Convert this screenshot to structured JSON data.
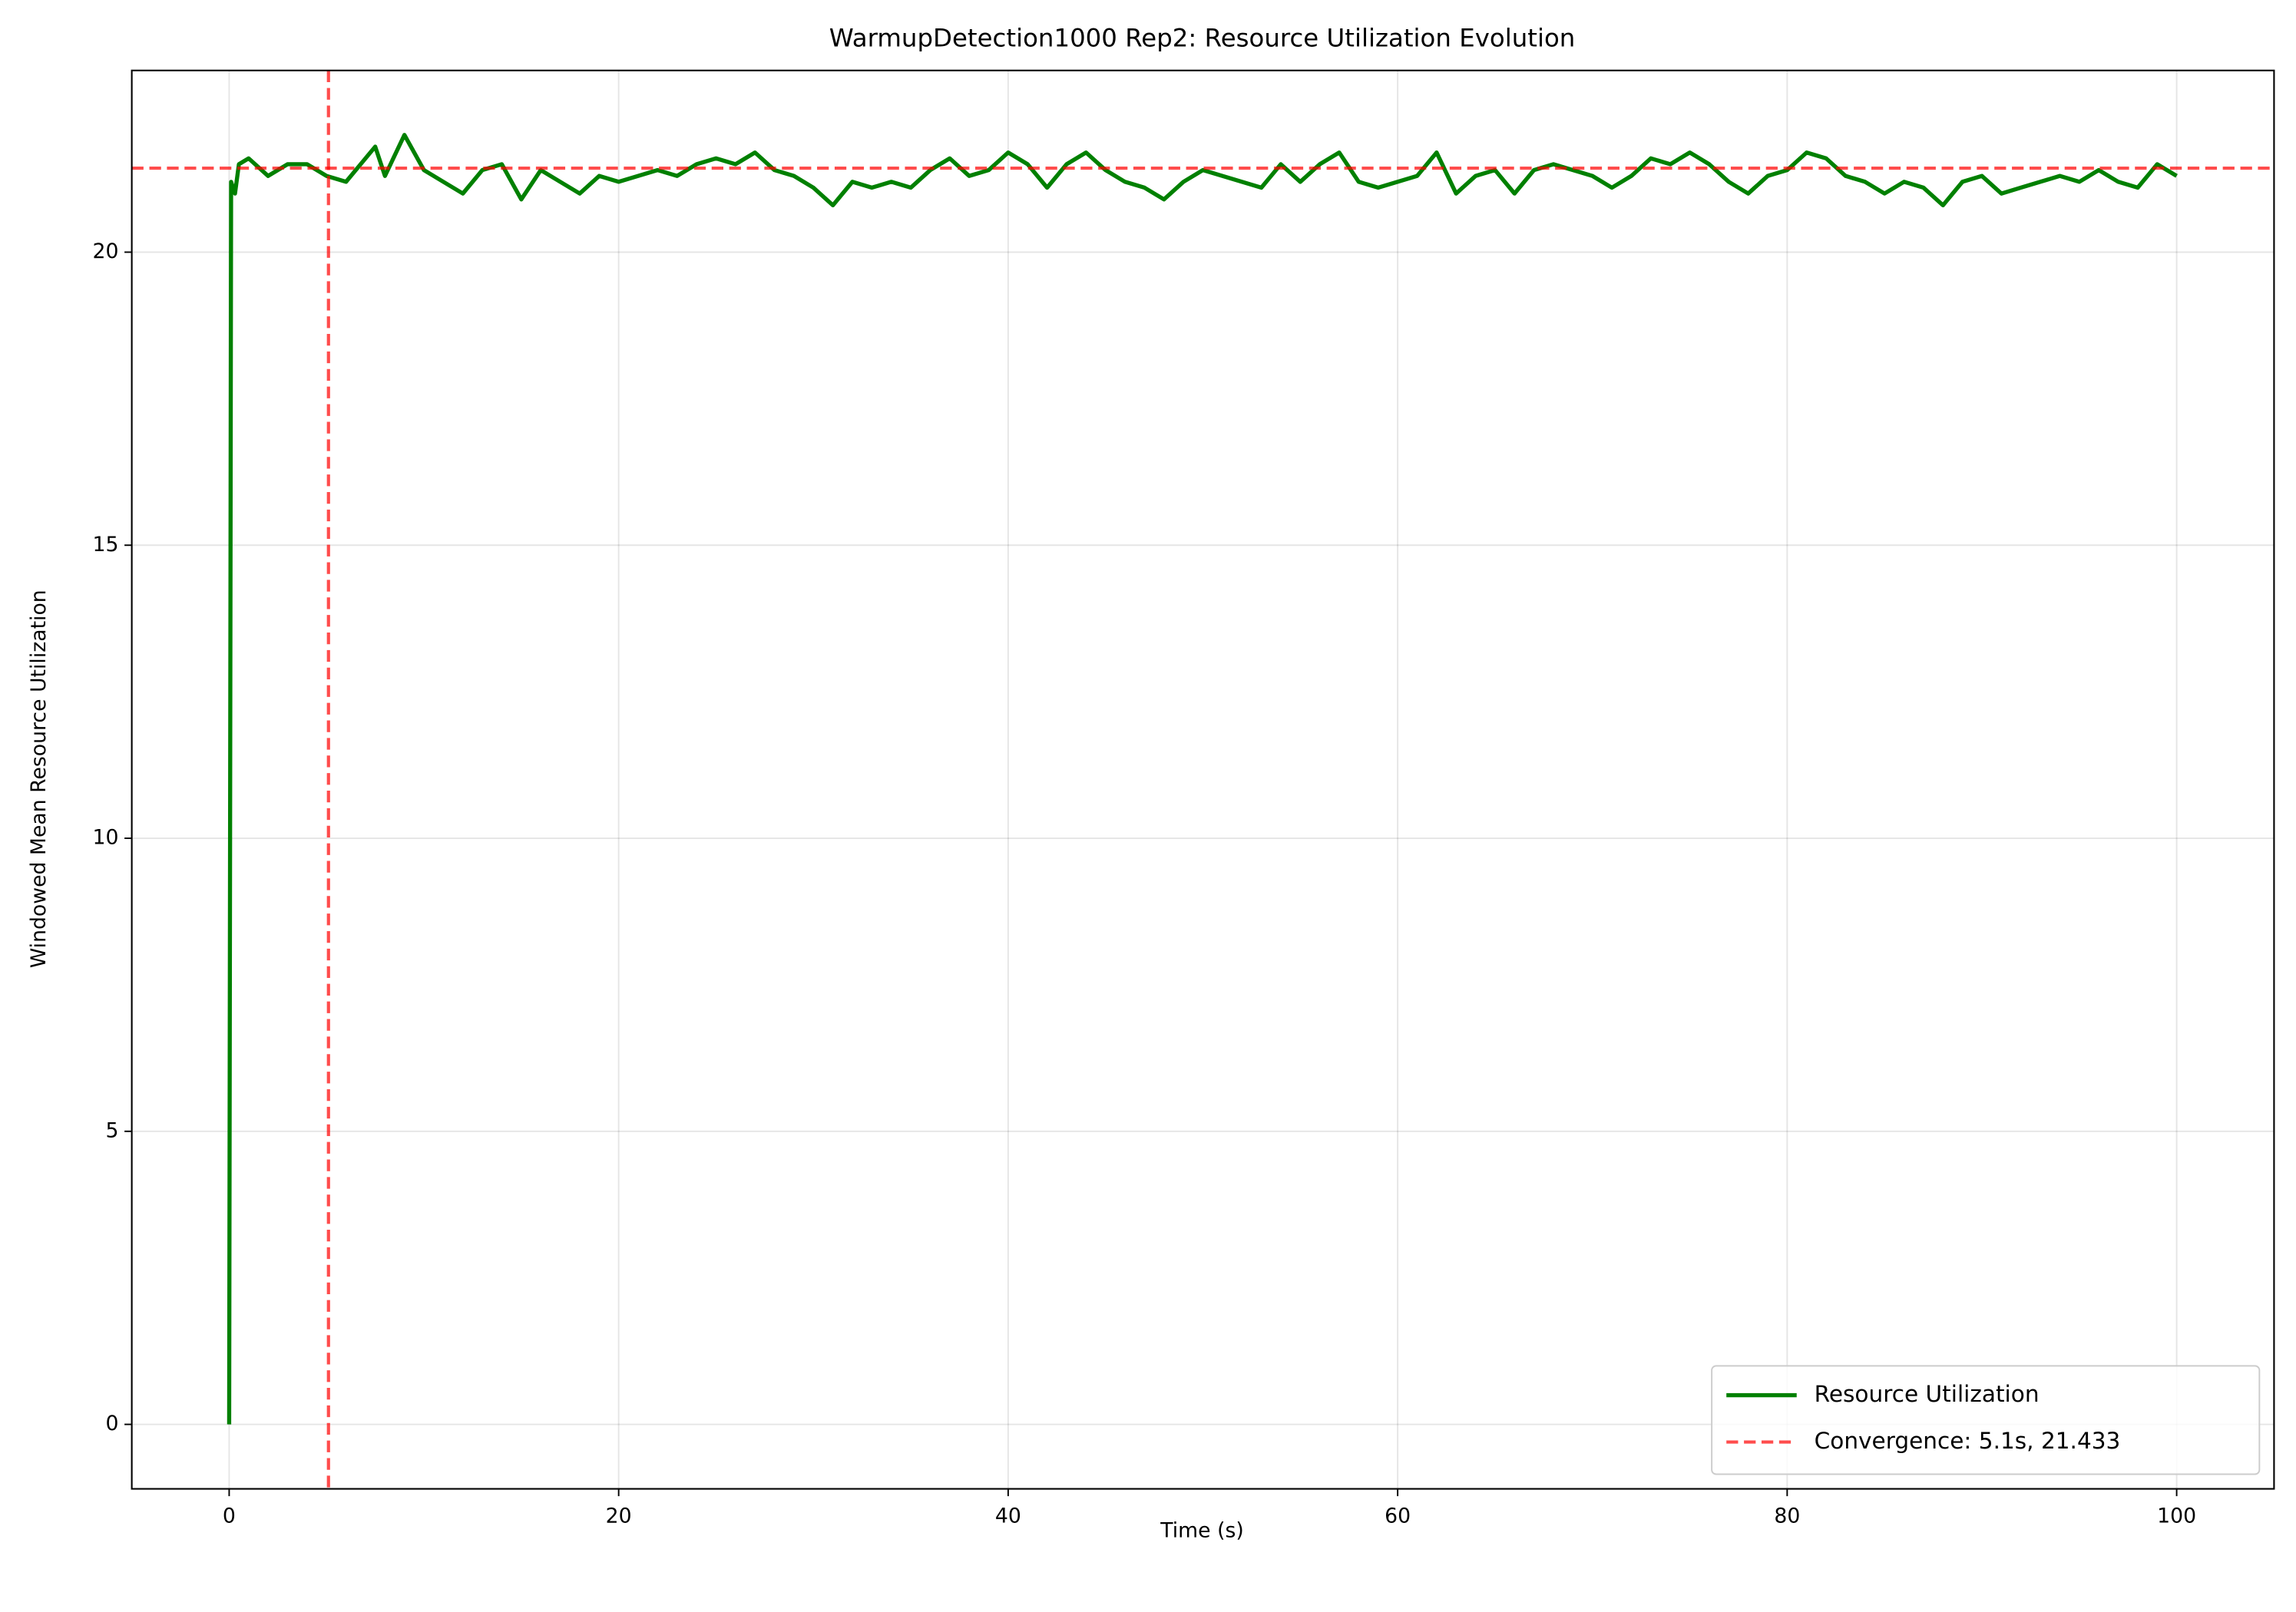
{
  "chart_data": {
    "type": "line",
    "title": "WarmupDetection1000 Rep2: Resource Utilization Evolution",
    "xlabel": "Time (s)",
    "ylabel": "Windowed Mean Resource Utilization",
    "x": [
      0,
      0.1,
      0.3,
      0.5,
      1,
      2,
      3,
      4,
      5,
      6,
      7,
      7.5,
      8,
      9,
      10,
      11,
      12,
      13,
      14,
      15,
      16,
      17,
      18,
      19,
      20,
      21,
      22,
      23,
      24,
      25,
      26,
      27,
      28,
      29,
      30,
      31,
      32,
      33,
      34,
      35,
      36,
      37,
      38,
      39,
      40,
      41,
      42,
      43,
      44,
      45,
      46,
      47,
      48,
      49,
      50,
      51,
      52,
      53,
      54,
      55,
      56,
      57,
      58,
      59,
      60,
      61,
      62,
      63,
      64,
      65,
      66,
      67,
      68,
      69,
      70,
      71,
      72,
      73,
      74,
      75,
      76,
      77,
      78,
      79,
      80,
      81,
      82,
      83,
      84,
      85,
      86,
      87,
      88,
      89,
      90,
      91,
      92,
      93,
      94,
      95,
      96,
      97,
      98,
      99,
      100
    ],
    "series": [
      {
        "name": "Resource Utilization",
        "color": "#008000",
        "values": [
          0,
          21.2,
          21.0,
          21.5,
          21.6,
          21.3,
          21.5,
          21.5,
          21.3,
          21.2,
          21.6,
          21.8,
          21.3,
          22.0,
          21.4,
          21.2,
          21.0,
          21.4,
          21.5,
          20.9,
          21.4,
          21.2,
          21.0,
          21.3,
          21.2,
          21.3,
          21.4,
          21.3,
          21.5,
          21.6,
          21.5,
          21.7,
          21.4,
          21.3,
          21.1,
          20.8,
          21.2,
          21.1,
          21.2,
          21.1,
          21.4,
          21.6,
          21.3,
          21.4,
          21.7,
          21.5,
          21.1,
          21.5,
          21.7,
          21.4,
          21.2,
          21.1,
          20.9,
          21.2,
          21.4,
          21.3,
          21.2,
          21.1,
          21.5,
          21.2,
          21.5,
          21.7,
          21.2,
          21.1,
          21.2,
          21.3,
          21.7,
          21.0,
          21.3,
          21.4,
          21.0,
          21.4,
          21.5,
          21.4,
          21.3,
          21.1,
          21.3,
          21.6,
          21.5,
          21.7,
          21.5,
          21.2,
          21.0,
          21.3,
          21.4,
          21.7,
          21.6,
          21.3,
          21.2,
          21.0,
          21.2,
          21.1,
          20.8,
          21.2,
          21.3,
          21.0,
          21.1,
          21.2,
          21.3,
          21.2,
          21.4,
          21.2,
          21.1,
          21.5,
          21.3
        ]
      }
    ],
    "convergence": {
      "label": "Convergence: 5.1s, 21.433",
      "x": 5.1,
      "y": 21.433,
      "color": "#ff0000"
    },
    "xlim": [
      -5,
      105
    ],
    "ylim": [
      -1.1,
      23.1
    ],
    "xticks": [
      0,
      20,
      40,
      60,
      80,
      100
    ],
    "yticks": [
      0,
      5,
      10,
      15,
      20
    ],
    "grid": true,
    "legend": "lower right"
  }
}
